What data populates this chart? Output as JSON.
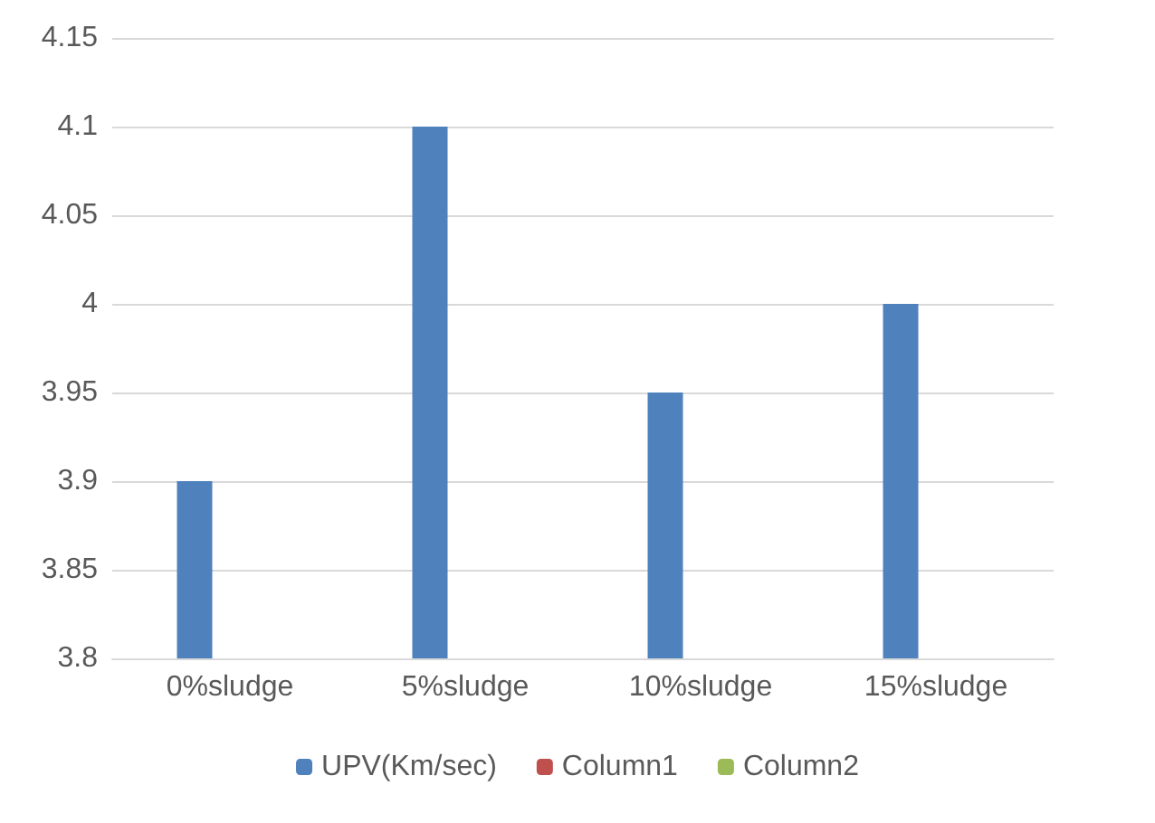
{
  "chart_data": {
    "type": "bar",
    "categories": [
      "0%sludge",
      "5%sludge",
      "10%sludge",
      "15%sludge"
    ],
    "series": [
      {
        "name": "UPV(Km/sec)",
        "color": "#4f81bd",
        "values": [
          3.9,
          4.1,
          3.95,
          4.0
        ]
      },
      {
        "name": "Column1",
        "color": "#c0504d",
        "values": [
          null,
          null,
          null,
          null
        ]
      },
      {
        "name": "Column2",
        "color": "#9bbb59",
        "values": [
          null,
          null,
          null,
          null
        ]
      }
    ],
    "ylim": [
      3.8,
      4.15
    ],
    "yticks": [
      3.8,
      3.85,
      3.9,
      3.95,
      4,
      4.05,
      4.1,
      4.15
    ],
    "grid": "y",
    "legend": "bottom"
  }
}
